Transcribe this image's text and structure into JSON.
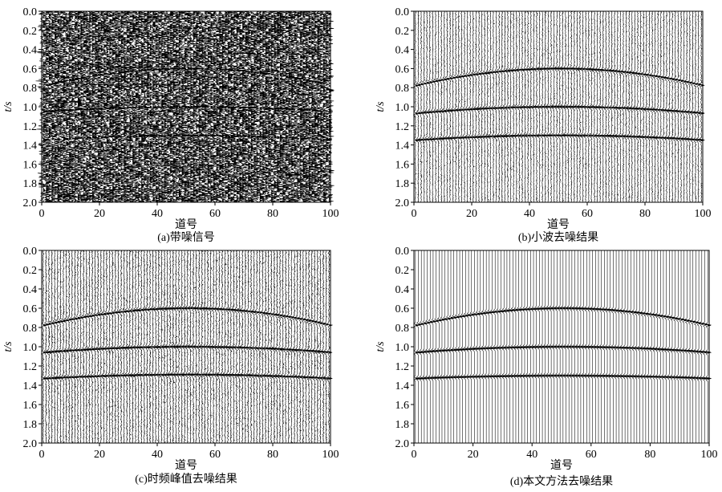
{
  "chart_data": [
    {
      "type": "seismic-section",
      "caption": "(a)带噪信号",
      "xlabel": "道号",
      "ylabel": "t/s",
      "xlim": [
        0,
        100
      ],
      "ylim": [
        0.0,
        2.0
      ],
      "y_reversed": true,
      "xticks": [
        "0",
        "20",
        "40",
        "60",
        "80",
        "100"
      ],
      "yticks": [
        "0.0",
        "0.2",
        "0.4",
        "0.6",
        "0.8",
        "1.0",
        "1.2",
        "1.4",
        "1.6",
        "1.8",
        "2.0"
      ],
      "trace_count": 100,
      "noise_level": "heavy",
      "events": [
        {
          "t_edge": 0.78,
          "t_apex": 0.6,
          "apex_trace": 50
        },
        {
          "t_edge": 1.05,
          "t_apex": 1.0,
          "apex_trace": 50
        },
        {
          "t_edge": 1.35,
          "t_apex": 1.3,
          "apex_trace": 50
        }
      ]
    },
    {
      "type": "seismic-section",
      "caption": "(b)小波去噪结果",
      "xlabel": "道号",
      "ylabel": "t/s",
      "xlim": [
        0,
        100
      ],
      "ylim": [
        0.0,
        2.0
      ],
      "y_reversed": true,
      "xticks": [
        "0",
        "20",
        "40",
        "60",
        "80",
        "100"
      ],
      "yticks": [
        "0.0",
        "0.2",
        "0.4",
        "0.6",
        "0.8",
        "1.0",
        "1.2",
        "1.4",
        "1.6",
        "1.8",
        "2.0"
      ],
      "trace_count": 100,
      "noise_level": "medium",
      "events": [
        {
          "t_edge": 0.78,
          "t_apex": 0.6,
          "apex_trace": 50
        },
        {
          "t_edge": 1.07,
          "t_apex": 1.0,
          "apex_trace": 50
        },
        {
          "t_edge": 1.35,
          "t_apex": 1.3,
          "apex_trace": 50
        }
      ]
    },
    {
      "type": "seismic-section",
      "caption": "(c)时频峰值去噪结果",
      "xlabel": "道号",
      "ylabel": "t/s",
      "xlim": [
        0,
        100
      ],
      "ylim": [
        0.0,
        2.0
      ],
      "y_reversed": true,
      "xticks": [
        "0",
        "20",
        "40",
        "60",
        "80",
        "100"
      ],
      "yticks": [
        "0.0",
        "0.2",
        "0.4",
        "0.6",
        "0.8",
        "1.0",
        "1.2",
        "1.4",
        "1.6",
        "1.8",
        "2.0"
      ],
      "trace_count": 100,
      "noise_level": "light",
      "events": [
        {
          "t_edge": 0.78,
          "t_apex": 0.6,
          "apex_trace": 50
        },
        {
          "t_edge": 1.06,
          "t_apex": 1.0,
          "apex_trace": 50
        },
        {
          "t_edge": 1.33,
          "t_apex": 1.29,
          "apex_trace": 50
        }
      ]
    },
    {
      "type": "seismic-section",
      "caption": "(d)本文方法去噪结果",
      "xlabel": "道号",
      "ylabel": "t/s",
      "xlim": [
        0,
        100
      ],
      "ylim": [
        0.0,
        2.0
      ],
      "y_reversed": true,
      "xticks": [
        "0",
        "20",
        "40",
        "60",
        "80",
        "100"
      ],
      "yticks": [
        "0.0",
        "0.2",
        "0.4",
        "0.6",
        "0.8",
        "1.0",
        "1.2",
        "1.4",
        "1.6",
        "1.8",
        "2.0"
      ],
      "trace_count": 100,
      "noise_level": "none",
      "events": [
        {
          "t_edge": 0.78,
          "t_apex": 0.6,
          "apex_trace": 50
        },
        {
          "t_edge": 1.06,
          "t_apex": 1.0,
          "apex_trace": 50
        },
        {
          "t_edge": 1.33,
          "t_apex": 1.3,
          "apex_trace": 50
        }
      ]
    }
  ]
}
